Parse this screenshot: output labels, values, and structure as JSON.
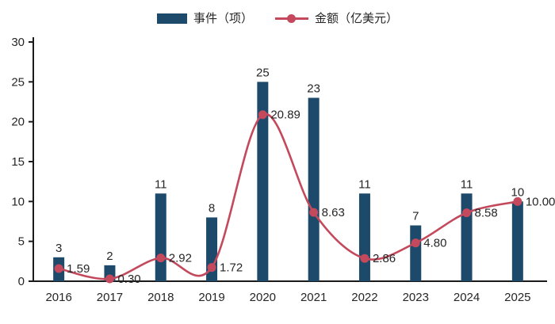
{
  "legend": {
    "bar_label": "事件（项）",
    "line_label": "金额（亿美元）"
  },
  "colors": {
    "bar": "#1d4a6b",
    "line": "#c4495c",
    "axis": "#1a1a1a",
    "text": "#262626"
  },
  "chart_data": {
    "type": "bar",
    "subtype": "bar+line combo",
    "categories": [
      "2016",
      "2017",
      "2018",
      "2019",
      "2020",
      "2021",
      "2022",
      "2023",
      "2024",
      "2025"
    ],
    "series": [
      {
        "name": "事件（项）",
        "type": "bar",
        "color": "#1d4a6b",
        "values": [
          3,
          2,
          11,
          8,
          25,
          23,
          11,
          7,
          11,
          10
        ],
        "labels": [
          "3",
          "2",
          "11",
          "8",
          "25",
          "23",
          "11",
          "7",
          "11",
          "10"
        ]
      },
      {
        "name": "金额（亿美元）",
        "type": "line",
        "smooth": true,
        "color": "#c4495c",
        "values": [
          1.59,
          0.3,
          2.92,
          1.72,
          20.89,
          8.63,
          2.86,
          4.8,
          8.58,
          10.0
        ],
        "labels": [
          "1.59",
          "0.30",
          "2.92",
          "1.72",
          "20.89",
          "8.63",
          "2.86",
          "4.80",
          "8.58",
          "10.00"
        ]
      }
    ],
    "title": "",
    "xlabel": "",
    "ylabel": "",
    "ylim": [
      0,
      30
    ],
    "yticks": [
      0,
      5,
      10,
      15,
      20,
      25,
      30
    ],
    "grid": false,
    "legend_position": "top"
  }
}
